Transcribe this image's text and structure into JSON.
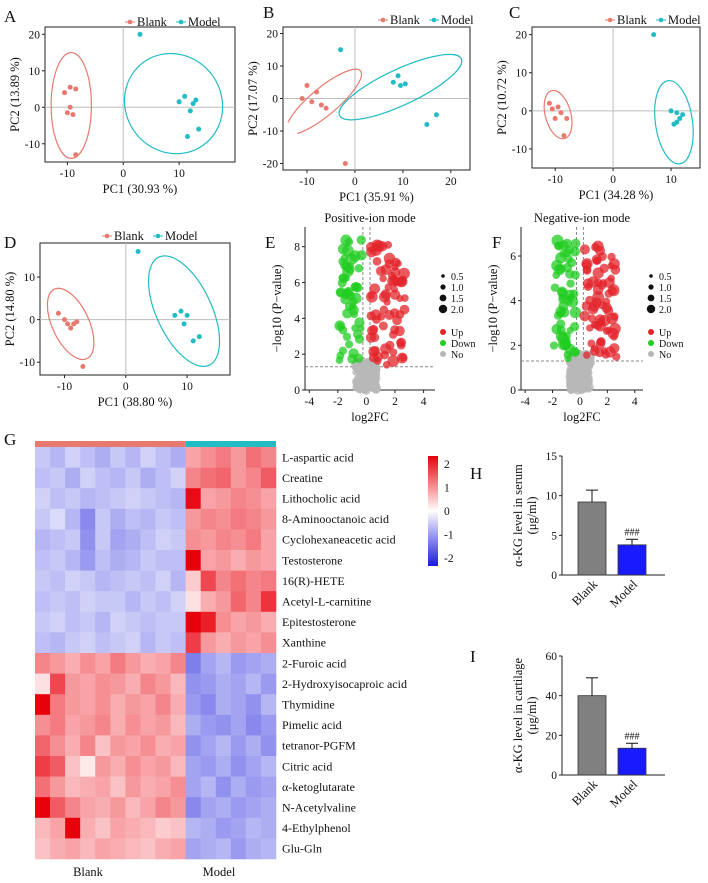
{
  "colors": {
    "blank": "#e8796f",
    "model": "#22bcc4",
    "up": "#e3242b",
    "down": "#22cc22",
    "no": "#b8b8b8",
    "bar_blank": "#808080",
    "bar_model": "#1a1aff",
    "heat_high": "#e8000b",
    "heat_mid": "#ffffff",
    "heat_low": "#1a1adc"
  },
  "chart_data": [
    {
      "panel": "A",
      "type": "scatter",
      "xlabel": "PC1 (30.93 %)",
      "ylabel": "PC2 (13.89 %)",
      "xlim": [
        -14,
        20
      ],
      "ylim": [
        -15,
        22
      ],
      "xticks": [
        -10,
        0,
        10
      ],
      "yticks": [
        -10,
        0,
        10,
        20
      ],
      "legend": [
        "Blank",
        "Model"
      ],
      "series": [
        {
          "name": "Blank",
          "points": [
            [
              -10.5,
              4
            ],
            [
              -9.5,
              5.5
            ],
            [
              -8.5,
              5
            ],
            [
              -9.5,
              0
            ],
            [
              -10,
              -1.5
            ],
            [
              -9,
              -2
            ],
            [
              -8.5,
              -13
            ]
          ],
          "ellipse": {
            "cx": -9.3,
            "cy": 0.5,
            "rx": 3.6,
            "ry": 14.5,
            "angle": 0
          }
        },
        {
          "name": "Model",
          "points": [
            [
              3,
              20
            ],
            [
              10,
              1.5
            ],
            [
              11,
              3
            ],
            [
              12.5,
              1
            ],
            [
              13,
              2
            ],
            [
              12,
              -1
            ],
            [
              11.5,
              -8
            ],
            [
              13.5,
              -6
            ]
          ],
          "ellipse": {
            "cx": 9,
            "cy": 1,
            "rx": 8.6,
            "ry": 14,
            "angle": -35
          }
        }
      ]
    },
    {
      "panel": "B",
      "type": "scatter",
      "xlabel": "PC1 (35.91 %)",
      "ylabel": "PC2 (17.07 %)",
      "xlim": [
        -15,
        24
      ],
      "ylim": [
        -22,
        22
      ],
      "xticks": [
        -10,
        0,
        10,
        20
      ],
      "yticks": [
        -20,
        -10,
        0,
        10,
        20
      ],
      "legend": [
        "Blank",
        "Model"
      ],
      "series": [
        {
          "name": "Blank",
          "points": [
            [
              -11,
              0
            ],
            [
              -10,
              4
            ],
            [
              -8,
              2
            ],
            [
              -7,
              -2
            ],
            [
              -6,
              -3
            ],
            [
              -9,
              -1
            ],
            [
              -2,
              -20
            ]
          ],
          "ellipse": {
            "cx": -6.5,
            "cy": -1,
            "rx": 10,
            "ry": 4.2,
            "angle": -40
          }
        },
        {
          "name": "Model",
          "points": [
            [
              -3,
              15
            ],
            [
              8,
              5
            ],
            [
              9,
              7
            ],
            [
              9.5,
              4
            ],
            [
              10.5,
              4.5
            ],
            [
              17,
              -5
            ],
            [
              15,
              -8
            ]
          ],
          "ellipse": {
            "cx": 9.5,
            "cy": 3.5,
            "rx": 14,
            "ry": 5.5,
            "angle": -25
          }
        }
      ]
    },
    {
      "panel": "C",
      "type": "scatter",
      "xlabel": "PC1 (34.28 %)",
      "ylabel": "PC2 (10.72 %)",
      "xlim": [
        -14,
        15
      ],
      "ylim": [
        -15,
        22
      ],
      "xticks": [
        -10,
        0,
        10
      ],
      "yticks": [
        -10,
        0,
        10,
        20
      ],
      "legend": [
        "Blank",
        "Model"
      ],
      "series": [
        {
          "name": "Blank",
          "points": [
            [
              -11,
              2
            ],
            [
              -10.5,
              0.5
            ],
            [
              -10,
              -2
            ],
            [
              -9.5,
              1
            ],
            [
              -9,
              -0.5
            ],
            [
              -8,
              -2
            ],
            [
              -8.5,
              -6.5
            ]
          ],
          "ellipse": {
            "cx": -9.5,
            "cy": -1,
            "rx": 2.2,
            "ry": 6.5,
            "angle": -15
          }
        },
        {
          "name": "Model",
          "points": [
            [
              7,
              20
            ],
            [
              10,
              0
            ],
            [
              11,
              -0.5
            ],
            [
              11.5,
              -2
            ],
            [
              11,
              -3
            ],
            [
              12,
              -1
            ],
            [
              10.5,
              -3.5
            ]
          ],
          "ellipse": {
            "cx": 10.5,
            "cy": -3,
            "rx": 3.2,
            "ry": 11,
            "angle": -8
          }
        }
      ]
    },
    {
      "panel": "D",
      "type": "scatter",
      "xlabel": "PC1 (38.80 %)",
      "ylabel": "PC2 (14.80 %)",
      "xlim": [
        -14,
        17
      ],
      "ylim": [
        -13,
        18
      ],
      "xticks": [
        -10,
        0,
        10
      ],
      "yticks": [
        -10,
        0,
        10
      ],
      "legend": [
        "Blank",
        "Model"
      ],
      "series": [
        {
          "name": "Blank",
          "points": [
            [
              -11,
              1.5
            ],
            [
              -10,
              0
            ],
            [
              -9.5,
              -1
            ],
            [
              -9,
              -2
            ],
            [
              -8.5,
              -1
            ],
            [
              -8,
              -0.5
            ],
            [
              -7,
              -11
            ]
          ],
          "ellipse": {
            "cx": -9,
            "cy": -1,
            "rx": 3,
            "ry": 9,
            "angle": -25
          }
        },
        {
          "name": "Model",
          "points": [
            [
              2,
              16
            ],
            [
              8,
              1
            ],
            [
              9,
              2
            ],
            [
              10,
              1
            ],
            [
              9.5,
              -1
            ],
            [
              11,
              -5
            ],
            [
              12,
              -4
            ]
          ],
          "ellipse": {
            "cx": 9.5,
            "cy": 2,
            "rx": 4.5,
            "ry": 14,
            "angle": -25
          }
        }
      ]
    },
    {
      "panel": "E",
      "type": "scatter",
      "title": "Positive-ion mode",
      "xlabel": "log2FC",
      "ylabel": "−log10 (P−value)",
      "xlim": [
        -4.3,
        4.8
      ],
      "ylim": [
        0,
        9.1
      ],
      "xticks": [
        -4,
        -2,
        0,
        2,
        4
      ],
      "yticks": [
        0,
        2,
        4,
        6,
        8
      ],
      "size_legend": [
        "0.5",
        "1.0",
        "1.5",
        "2.0"
      ],
      "legend": [
        "Up",
        "Down",
        "No"
      ],
      "hline": 1.3,
      "vlines": [
        -0.25,
        0.25
      ]
    },
    {
      "panel": "F",
      "type": "scatter",
      "title": "Negative-ion mode",
      "xlabel": "log2FC",
      "ylabel": "−log10 (P−value)",
      "xlim": [
        -4.3,
        4.6
      ],
      "ylim": [
        0,
        7.3
      ],
      "xticks": [
        -4,
        -2,
        0,
        2,
        4
      ],
      "yticks": [
        0,
        2,
        4,
        6
      ],
      "size_legend": [
        "0.5",
        "1.0",
        "1.5",
        "2.0"
      ],
      "legend": [
        "Up",
        "Down",
        "No"
      ],
      "hline": 1.3,
      "vlines": [
        -0.25,
        0.25
      ]
    },
    {
      "panel": "G",
      "type": "heatmap",
      "groups": [
        "Blank",
        "Model"
      ],
      "colorbar_ticks": [
        "2",
        "1",
        "0",
        "-1",
        "-2"
      ],
      "rows": [
        "L-aspartic acid",
        "Creatine",
        "Lithocholic acid",
        "8-Aminooctanoic acid",
        "Cyclohexaneacetic acid",
        "Testosterone",
        "16(R)-HETE",
        "Acetyl-L-carnitine",
        "Epitestosterone",
        "Xanthine",
        "2-Furoic acid",
        "2-Hydroxyisocaproic acid",
        "Thymidine",
        "Pimelic acid",
        "tetranor-PGFM",
        "Citric acid",
        "α-ketoglutarate",
        "N-Acetylvaline",
        "4-Ethylphenol",
        "Glu-Gln"
      ],
      "values": [
        [
          -0.6,
          -0.8,
          -0.5,
          -0.7,
          -0.9,
          -0.6,
          -0.8,
          -0.5,
          -0.7,
          -0.9,
          0.9,
          1.1,
          1.3,
          1.0,
          1.4,
          1.2
        ],
        [
          -0.7,
          -0.6,
          -0.9,
          -0.5,
          -0.7,
          -0.8,
          -0.6,
          -0.9,
          -0.7,
          -0.5,
          1.2,
          1.4,
          1.5,
          1.0,
          1.2,
          1.6
        ],
        [
          -0.5,
          -0.7,
          -0.6,
          -0.8,
          -0.7,
          -0.6,
          -0.5,
          -0.6,
          -0.7,
          -0.8,
          2.4,
          0.9,
          1.0,
          1.2,
          1.1,
          0.9
        ],
        [
          -0.6,
          -0.4,
          -0.8,
          -1.3,
          -0.6,
          -0.9,
          -0.7,
          -0.8,
          -0.6,
          -0.7,
          1.0,
          1.2,
          1.1,
          1.3,
          1.2,
          1.0
        ],
        [
          -0.8,
          -0.7,
          -0.6,
          -1.2,
          -0.6,
          -1.0,
          -0.9,
          -0.7,
          -0.5,
          -0.6,
          1.1,
          1.0,
          1.2,
          1.1,
          1.3,
          0.9
        ],
        [
          -0.7,
          -0.6,
          -0.8,
          -1.1,
          -0.7,
          -0.9,
          -0.8,
          -0.6,
          -0.7,
          -0.7,
          2.6,
          0.9,
          1.0,
          0.8,
          1.0,
          0.9
        ],
        [
          -0.6,
          -0.7,
          -0.5,
          -0.6,
          -0.8,
          -0.7,
          -0.6,
          -0.7,
          -0.5,
          -0.8,
          0.5,
          1.8,
          1.2,
          1.4,
          1.2,
          1.3
        ],
        [
          -0.7,
          -0.6,
          -0.7,
          -0.5,
          -0.6,
          -0.6,
          -0.8,
          -0.6,
          -0.7,
          -0.5,
          0.3,
          0.8,
          1.0,
          1.5,
          1.2,
          2.0
        ],
        [
          -0.6,
          -0.5,
          -0.7,
          -0.6,
          -0.8,
          -0.5,
          -0.6,
          -0.7,
          -0.6,
          -0.6,
          2.5,
          2.2,
          1.1,
          0.9,
          1.0,
          0.8
        ],
        [
          -0.7,
          -0.8,
          -0.6,
          -0.5,
          -0.7,
          -0.6,
          -0.5,
          -0.8,
          -0.6,
          -0.7,
          1.9,
          1.0,
          0.8,
          1.0,
          0.9,
          1.1
        ],
        [
          1.2,
          1.0,
          0.8,
          1.1,
          0.9,
          1.3,
          1.0,
          0.8,
          0.9,
          1.2,
          -1.4,
          -1.0,
          -0.8,
          -1.1,
          -1.0,
          -0.9
        ],
        [
          0.3,
          1.8,
          1.0,
          0.9,
          1.1,
          1.0,
          0.8,
          1.2,
          1.0,
          0.7,
          -1.2,
          -1.1,
          -0.9,
          -1.0,
          -0.8,
          -1.1
        ],
        [
          2.6,
          1.3,
          1.0,
          0.9,
          1.1,
          0.8,
          1.0,
          0.9,
          1.2,
          0.8,
          -1.1,
          -1.3,
          -0.9,
          -1.0,
          -1.2,
          -0.8
        ],
        [
          1.1,
          1.3,
          0.9,
          1.0,
          1.2,
          0.8,
          1.1,
          0.9,
          1.0,
          0.7,
          -0.9,
          -1.1,
          -1.2,
          -1.0,
          -1.3,
          -1.1
        ],
        [
          1.5,
          1.1,
          0.8,
          1.2,
          0.6,
          1.0,
          0.9,
          1.1,
          0.8,
          0.9,
          -1.2,
          -1.0,
          -0.8,
          -1.1,
          -0.9,
          -1.2
        ],
        [
          1.9,
          1.6,
          0.6,
          0.2,
          1.0,
          0.8,
          1.1,
          0.9,
          1.0,
          0.7,
          -1.0,
          -1.1,
          -0.9,
          -1.2,
          -1.0,
          -0.8
        ],
        [
          1.4,
          1.0,
          0.7,
          0.8,
          0.9,
          0.6,
          1.0,
          0.8,
          0.9,
          1.1,
          -1.0,
          -0.8,
          -1.2,
          -0.9,
          -1.1,
          -1.0
        ],
        [
          2.5,
          1.6,
          1.2,
          0.9,
          0.8,
          1.0,
          0.7,
          0.9,
          1.2,
          1.0,
          -1.3,
          -1.0,
          -0.9,
          -1.1,
          -1.0,
          -0.9
        ],
        [
          0.7,
          0.9,
          2.7,
          0.8,
          0.6,
          0.9,
          0.8,
          0.7,
          0.5,
          0.6,
          -0.8,
          -0.9,
          -1.1,
          -1.0,
          -0.8,
          -0.9
        ],
        [
          0.6,
          0.8,
          0.9,
          0.7,
          0.9,
          0.8,
          0.7,
          0.6,
          0.8,
          0.9,
          -1.0,
          -0.9,
          -0.8,
          -1.1,
          -0.9,
          -0.8
        ]
      ]
    },
    {
      "panel": "H",
      "type": "bar",
      "categories": [
        "Blank",
        "Model"
      ],
      "values": [
        9.2,
        3.8
      ],
      "errors": [
        1.5,
        0.7
      ],
      "ylabel": "α-KG level in serum",
      "yunit": "(μg/ml)",
      "ylim": [
        0,
        15
      ],
      "yticks": [
        0,
        5,
        10,
        15
      ],
      "significance": "###"
    },
    {
      "panel": "I",
      "type": "bar",
      "categories": [
        "Blank",
        "Model"
      ],
      "values": [
        40,
        13.5
      ],
      "errors": [
        9,
        2.5
      ],
      "ylabel": "α-KG level in cartilage",
      "yunit": "(μg/ml)",
      "ylim": [
        0,
        60
      ],
      "yticks": [
        0,
        20,
        40,
        60
      ],
      "significance": "###"
    }
  ]
}
